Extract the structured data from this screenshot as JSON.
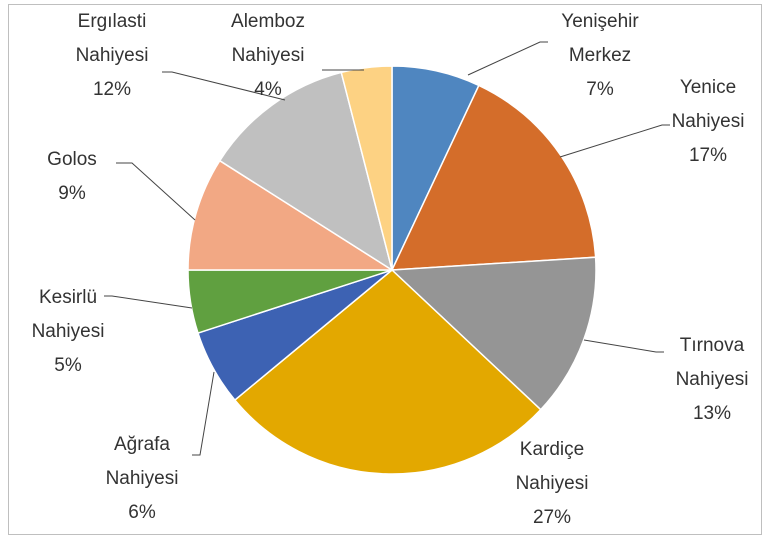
{
  "chart_data": {
    "type": "pie",
    "categories": [
      "Yenişehir Merkez",
      "Yenice Nahiyesi",
      "Tırnova Nahiyesi",
      "Kardiçe Nahiyesi",
      "Ağrafa Nahiyesi",
      "Kesirlü Nahiyesi",
      "Golos",
      "Ergılasti Nahiyesi",
      "Alemboz Nahiyesi"
    ],
    "values": [
      7,
      17,
      13,
      27,
      6,
      5,
      9,
      12,
      4
    ],
    "value_labels": [
      "7%",
      "17%",
      "13%",
      "27%",
      "6%",
      "5%",
      "9%",
      "12%",
      "4%"
    ],
    "colors": [
      "#4f86c0",
      "#d46d2a",
      "#959595",
      "#e3a800",
      "#3d62b3",
      "#60a040",
      "#f2a884",
      "#c0c0c0",
      "#fdd283"
    ]
  }
}
